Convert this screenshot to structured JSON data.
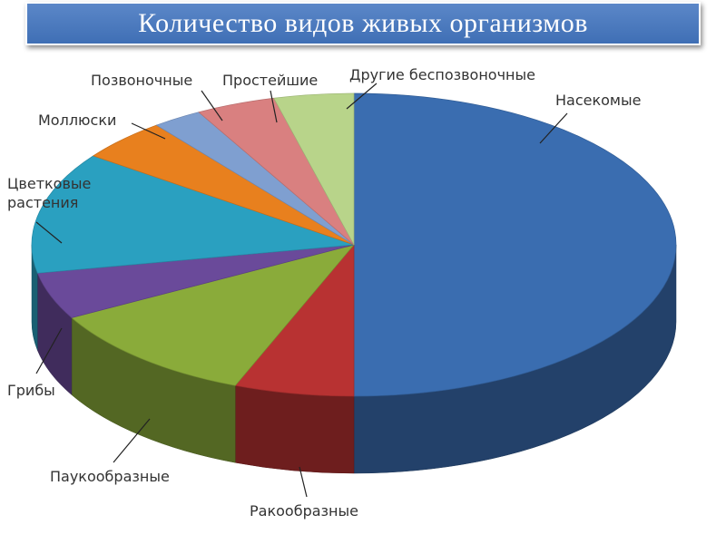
{
  "chart_data": {
    "type": "pie3d",
    "title": "Количество видов живых организмов",
    "categories": [
      "Насекомые",
      "Ракообразные",
      "Паукообразные",
      "Грибы",
      "Цветковые растения",
      "Моллюски",
      "Позвоночные",
      "Простейшие",
      "Другие беспозвоночные"
    ],
    "values": [
      50,
      6,
      11,
      5,
      13,
      4.5,
      2.5,
      4,
      4
    ],
    "colors": [
      "#3a6db0",
      "#b83232",
      "#8aab3a",
      "#6a4a9a",
      "#2aa0c0",
      "#e8801e",
      "#7f9fd0",
      "#d98080",
      "#b8d48a"
    ]
  }
}
